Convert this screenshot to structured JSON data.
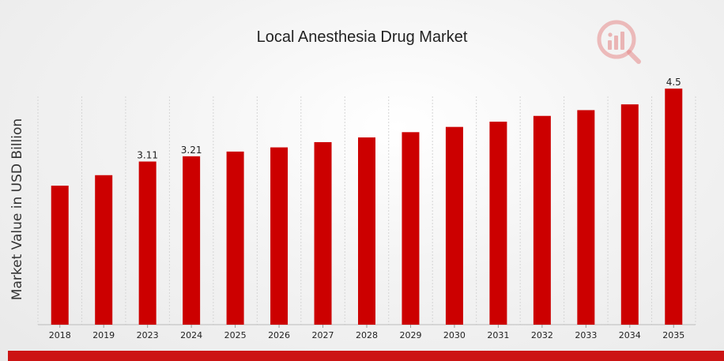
{
  "chart_data": {
    "type": "bar",
    "title": "Local Anesthesia Drug Market",
    "xlabel": "",
    "ylabel": "Market Value in USD Billion",
    "categories": [
      "2018",
      "2019",
      "2023",
      "2024",
      "2025",
      "2026",
      "2027",
      "2028",
      "2029",
      "2030",
      "2031",
      "2032",
      "2033",
      "2034",
      "2035"
    ],
    "values": [
      2.65,
      2.85,
      3.11,
      3.21,
      3.3,
      3.38,
      3.48,
      3.57,
      3.67,
      3.77,
      3.87,
      3.98,
      4.09,
      4.2,
      4.5
    ],
    "data_labels": {
      "2023": "3.11",
      "2024": "3.21",
      "2035": "4.5"
    },
    "ylim": [
      0,
      5.0
    ],
    "grid": "vertical",
    "legend": "none",
    "bar_color": "#cc0000"
  },
  "logo": {
    "icon": "market-research-logo-icon",
    "color": "#cc1414"
  },
  "colors": {
    "accent_band": "#cc1414",
    "gridline": "#d5d5d5"
  }
}
